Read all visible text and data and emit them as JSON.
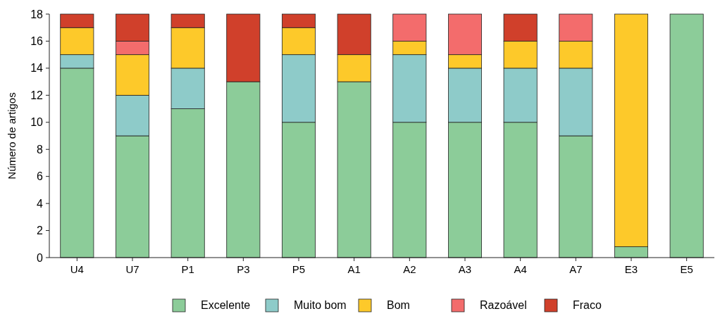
{
  "chart_data": {
    "type": "bar",
    "stacked": true,
    "ylabel": "Número de artigos",
    "categories": [
      "U4",
      "U7",
      "P1",
      "P3",
      "P5",
      "A1",
      "A2",
      "A3",
      "A4",
      "A7",
      "E3",
      "E5"
    ],
    "series": [
      {
        "name": "Excelente",
        "color": "#8ccc99",
        "values": [
          14,
          9,
          11,
          13,
          10,
          13,
          10,
          10,
          10,
          9,
          0.8,
          18
        ]
      },
      {
        "name": "Muito bom",
        "color": "#8ecbc9",
        "values": [
          1,
          3,
          3,
          0,
          5,
          0,
          5,
          4,
          4,
          5,
          0,
          0
        ]
      },
      {
        "name": "Bom",
        "color": "#fdc92a",
        "values": [
          2,
          3,
          3,
          0,
          2,
          2,
          1,
          1,
          2,
          2,
          17.2,
          0
        ]
      },
      {
        "name": "Razoável",
        "color": "#f36c6c",
        "values": [
          0,
          1,
          0,
          0,
          0,
          0,
          2,
          3,
          0,
          2,
          0,
          0
        ]
      },
      {
        "name": "Fraco",
        "color": "#d0402b",
        "values": [
          1,
          2,
          1,
          5,
          1,
          3,
          0,
          0,
          2,
          0,
          0,
          0
        ]
      }
    ],
    "ylim": [
      0,
      18
    ],
    "yticks": [
      0,
      2,
      4,
      6,
      8,
      10,
      12,
      14,
      16,
      18
    ],
    "legend": "bottom",
    "grid": false
  }
}
